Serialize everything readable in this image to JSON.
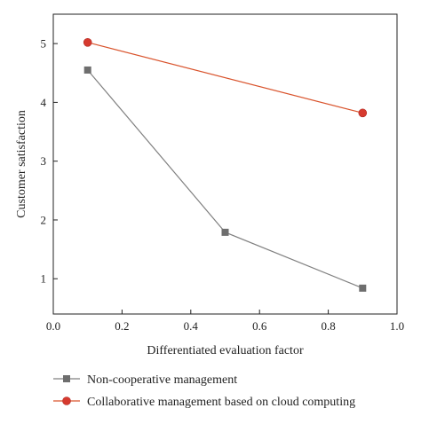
{
  "chart_data": {
    "type": "line",
    "title": "",
    "xlabel": "Differentiated evaluation factor",
    "ylabel": "Customer satisfaction",
    "xlim": [
      0.0,
      1.0
    ],
    "ylim": [
      0.4,
      5.5
    ],
    "xticks": [
      0.0,
      0.2,
      0.4,
      0.6,
      0.8,
      1.0
    ],
    "xtick_labels": [
      "0.0",
      "0.2",
      "0.4",
      "0.6",
      "0.8",
      "1.0"
    ],
    "yticks": [
      1,
      2,
      3,
      4,
      5
    ],
    "ytick_labels": [
      "1",
      "2",
      "3",
      "4",
      "5"
    ],
    "grid": false,
    "legend_position": "bottom",
    "series": [
      {
        "name": "Non-cooperative management",
        "color": "#808080",
        "marker_color": "#6e6e6e",
        "marker": "square",
        "x": [
          0.1,
          0.5,
          0.9
        ],
        "y": [
          4.55,
          1.79,
          0.84
        ]
      },
      {
        "name": "Collaborative management based on cloud computing",
        "color": "#d9532c",
        "marker_color": "#d63a2f",
        "marker": "circle",
        "x": [
          0.1,
          0.9
        ],
        "y": [
          5.02,
          3.82
        ]
      }
    ]
  }
}
